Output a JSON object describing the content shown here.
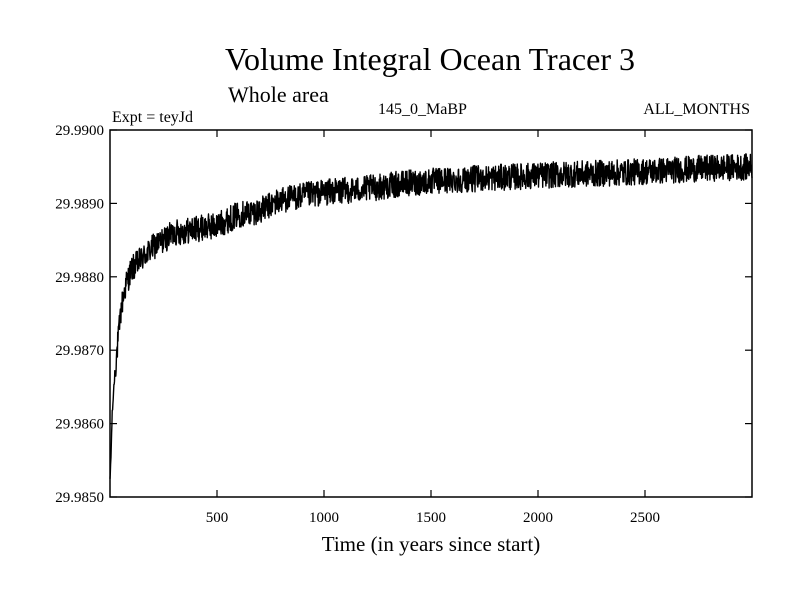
{
  "chart_data": {
    "type": "line",
    "title": "Volume Integral Ocean Tracer 3",
    "subtitle": "Whole area",
    "experiment_label": "Expt = teyJd",
    "period_label": "145_0_MaBP",
    "months_label": "ALL_MONTHS",
    "xlabel": "Time (in years since start)",
    "ylabel": "",
    "xlim": [
      0,
      3000
    ],
    "ylim": [
      29.985,
      29.99
    ],
    "x_ticks": [
      500,
      1000,
      1500,
      2000,
      2500
    ],
    "y_ticks": [
      "29.9850",
      "29.9860",
      "29.9870",
      "29.9880",
      "29.9890",
      "29.9900"
    ],
    "series": [
      {
        "name": "Volume Integral Ocean Tracer 3",
        "color": "#000000",
        "noise_amplitude": 0.00018,
        "points": [
          [
            0,
            29.9852
          ],
          [
            5,
            29.9856
          ],
          [
            10,
            29.9861
          ],
          [
            20,
            29.9866
          ],
          [
            30,
            29.9869
          ],
          [
            40,
            29.9872
          ],
          [
            50,
            29.9875
          ],
          [
            60,
            29.9877
          ],
          [
            75,
            29.9879
          ],
          [
            100,
            29.9881
          ],
          [
            150,
            29.98825
          ],
          [
            200,
            29.9884
          ],
          [
            300,
            29.9886
          ],
          [
            400,
            29.98865
          ],
          [
            500,
            29.9887
          ],
          [
            600,
            29.98885
          ],
          [
            700,
            29.9889
          ],
          [
            800,
            29.98905
          ],
          [
            900,
            29.9891
          ],
          [
            1000,
            29.98915
          ],
          [
            1200,
            29.9892
          ],
          [
            1400,
            29.98928
          ],
          [
            1600,
            29.98932
          ],
          [
            1800,
            29.98935
          ],
          [
            2000,
            29.98938
          ],
          [
            2200,
            29.9894
          ],
          [
            2400,
            29.98942
          ],
          [
            2600,
            29.98945
          ],
          [
            2800,
            29.98948
          ],
          [
            3000,
            29.9895
          ]
        ]
      }
    ]
  }
}
